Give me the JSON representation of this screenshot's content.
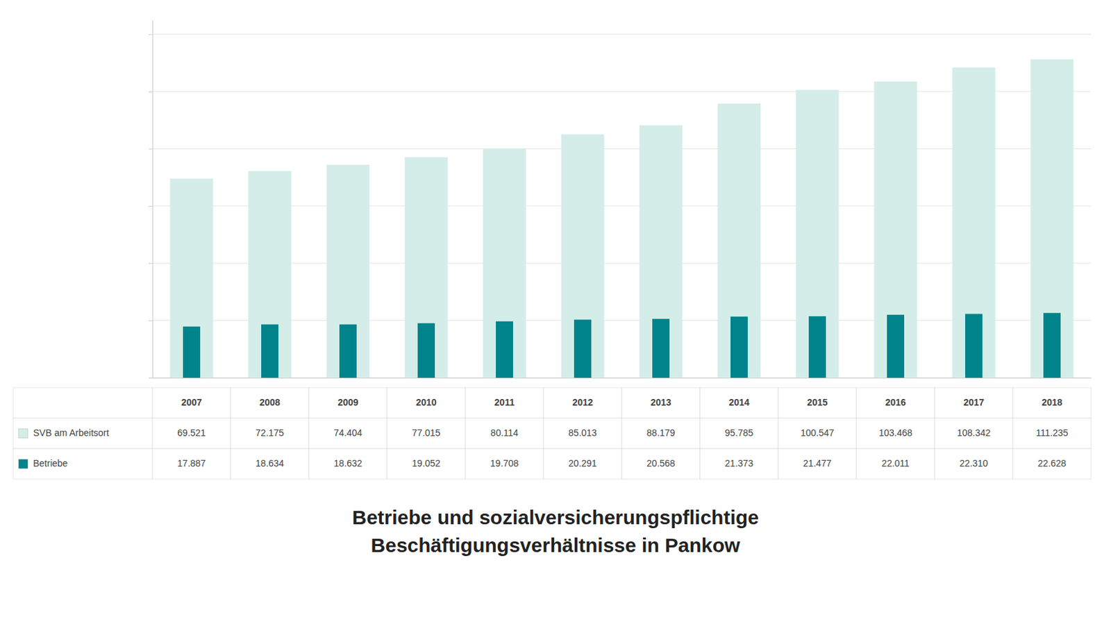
{
  "chart_data": {
    "type": "bar",
    "title": [
      "Betriebe und sozialversicherungspflichtige",
      "Beschäftigungsverhältnisse in Pankow"
    ],
    "categories": [
      "2007",
      "2008",
      "2009",
      "2010",
      "2011",
      "2012",
      "2013",
      "2014",
      "2015",
      "2016",
      "2017",
      "2018"
    ],
    "series": [
      {
        "name": "SVB am Arbeitsort",
        "color": "#d4ede8",
        "values": [
          69521,
          72175,
          74404,
          77015,
          80114,
          85013,
          88179,
          95785,
          100547,
          103468,
          108342,
          111235
        ],
        "value_labels": [
          "69.521",
          "72.175",
          "74.404",
          "77.015",
          "80.114",
          "85.013",
          "88.179",
          "95.785",
          "100.547",
          "103.468",
          "108.342",
          "111.235"
        ]
      },
      {
        "name": "Betriebe",
        "color": "#00838a",
        "values": [
          17887,
          18634,
          18632,
          19052,
          19708,
          20291,
          20568,
          21373,
          21477,
          22011,
          22310,
          22628
        ],
        "value_labels": [
          "17.887",
          "18.634",
          "18.632",
          "19.052",
          "19.708",
          "20.291",
          "20.568",
          "21.373",
          "21.477",
          "22.011",
          "22.310",
          "22.628"
        ]
      }
    ],
    "ylim": [
      0,
      125000
    ],
    "yticks": [
      0,
      20000,
      40000,
      60000,
      80000,
      100000,
      120000
    ],
    "grid": true,
    "tick_labels": false
  }
}
